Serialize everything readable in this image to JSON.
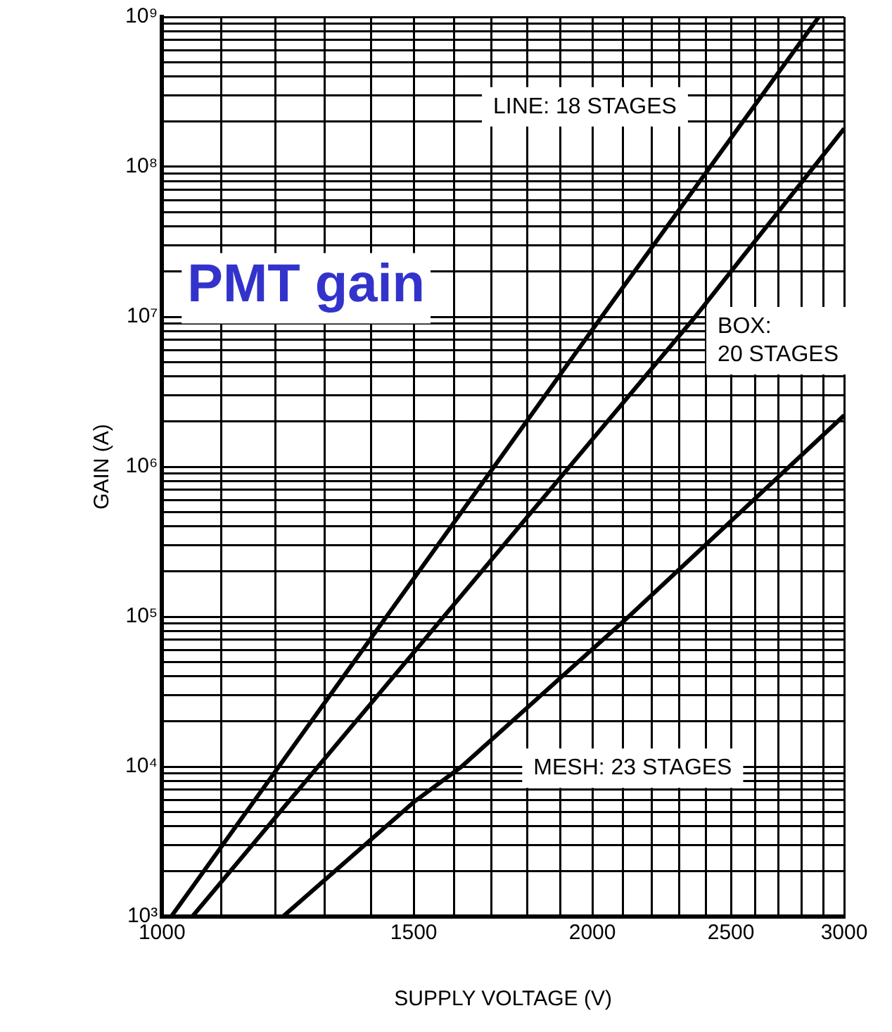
{
  "chart_data": {
    "type": "line",
    "title": "PMT gain",
    "xlabel": "SUPPLY VOLTAGE (V)",
    "ylabel": "GAIN (A)",
    "log": "xy",
    "grid": true,
    "legend": false,
    "marker": "none",
    "line_style": "solid",
    "xlim": [
      1000,
      3000
    ],
    "ylim": [
      1000,
      1000000000
    ],
    "xticks": [
      1000,
      {
        "value": 1100,
        "label": null
      },
      {
        "value": 1200,
        "label": null
      },
      {
        "value": 1300,
        "label": null
      },
      {
        "value": 1400,
        "label": null
      },
      1500,
      {
        "value": 1600,
        "label": null
      },
      {
        "value": 1700,
        "label": null
      },
      {
        "value": 1800,
        "label": null
      },
      {
        "value": 1900,
        "label": null
      },
      2000,
      {
        "value": 2100,
        "label": null
      },
      {
        "value": 2200,
        "label": null
      },
      {
        "value": 2300,
        "label": null
      },
      {
        "value": 2400,
        "label": null
      },
      2500,
      {
        "value": 2600,
        "label": null
      },
      {
        "value": 2700,
        "label": null
      },
      {
        "value": 2800,
        "label": null
      },
      {
        "value": 2900,
        "label": null
      },
      3000
    ],
    "yticks": [
      {
        "value": 1000,
        "label": "10³"
      },
      {
        "value": 2000,
        "label": null
      },
      {
        "value": 3000,
        "label": null
      },
      {
        "value": 4000,
        "label": null
      },
      {
        "value": 5000,
        "label": null
      },
      {
        "value": 6000,
        "label": null
      },
      {
        "value": 7000,
        "label": null
      },
      {
        "value": 8000,
        "label": null
      },
      {
        "value": 9000,
        "label": null
      },
      {
        "value": 10000,
        "label": "10⁴"
      },
      {
        "value": 20000,
        "label": null
      },
      {
        "value": 30000,
        "label": null
      },
      {
        "value": 40000,
        "label": null
      },
      {
        "value": 50000,
        "label": null
      },
      {
        "value": 60000,
        "label": null
      },
      {
        "value": 70000,
        "label": null
      },
      {
        "value": 80000,
        "label": null
      },
      {
        "value": 90000,
        "label": null
      },
      {
        "value": 100000,
        "label": "10⁵"
      },
      {
        "value": 200000,
        "label": null
      },
      {
        "value": 300000,
        "label": null
      },
      {
        "value": 400000,
        "label": null
      },
      {
        "value": 500000,
        "label": null
      },
      {
        "value": 600000,
        "label": null
      },
      {
        "value": 700000,
        "label": null
      },
      {
        "value": 800000,
        "label": null
      },
      {
        "value": 900000,
        "label": null
      },
      {
        "value": 1000000,
        "label": "10⁶"
      },
      {
        "value": 2000000,
        "label": null
      },
      {
        "value": 3000000,
        "label": null
      },
      {
        "value": 4000000,
        "label": null
      },
      {
        "value": 5000000,
        "label": null
      },
      {
        "value": 6000000,
        "label": null
      },
      {
        "value": 7000000,
        "label": null
      },
      {
        "value": 8000000,
        "label": null
      },
      {
        "value": 9000000,
        "label": null
      },
      {
        "value": 10000000,
        "label": "10⁷"
      },
      {
        "value": 20000000,
        "label": null
      },
      {
        "value": 30000000,
        "label": null
      },
      {
        "value": 40000000,
        "label": null
      },
      {
        "value": 50000000,
        "label": null
      },
      {
        "value": 60000000,
        "label": null
      },
      {
        "value": 70000000,
        "label": null
      },
      {
        "value": 80000000,
        "label": null
      },
      {
        "value": 90000000,
        "label": null
      },
      {
        "value": 100000000,
        "label": "10⁸"
      },
      {
        "value": 200000000,
        "label": null
      },
      {
        "value": 300000000,
        "label": null
      },
      {
        "value": 400000000,
        "label": null
      },
      {
        "value": 500000000,
        "label": null
      },
      {
        "value": 600000000,
        "label": null
      },
      {
        "value": 700000000,
        "label": null
      },
      {
        "value": 800000000,
        "label": null
      },
      {
        "value": 900000000,
        "label": null
      },
      {
        "value": 1000000000,
        "label": "10⁹"
      }
    ],
    "series": [
      {
        "name": "LINE: 18 STAGES",
        "color": "#000000",
        "x": [
          1015,
          2030,
          2880
        ],
        "values": [
          1000,
          10000000,
          1000000000
        ]
      },
      {
        "name": "BOX: 20 STAGES",
        "color": "#000000",
        "x": [
          1050,
          2360,
          3000
        ],
        "values": [
          1000,
          10000000,
          180000000
        ]
      },
      {
        "name": "MESH: 23 STAGES",
        "color": "#000000",
        "x": [
          1215,
          1500,
          1620,
          2120,
          3000
        ],
        "values": [
          1000,
          5800,
          10000,
          100000,
          2200000
        ]
      }
    ]
  }
}
